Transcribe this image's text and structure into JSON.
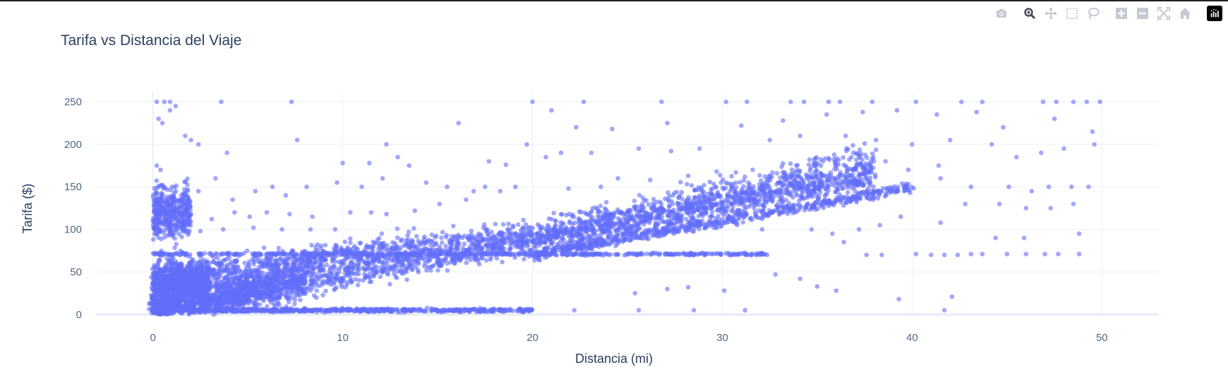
{
  "toolbar": {
    "buttons": [
      {
        "name": "camera-icon",
        "tooltip": "Download plot as a png"
      },
      {
        "name": "zoom-icon",
        "tooltip": "Zoom"
      },
      {
        "name": "pan-icon",
        "tooltip": "Pan"
      },
      {
        "name": "box-select-icon",
        "tooltip": "Box Select"
      },
      {
        "name": "lasso-select-icon",
        "tooltip": "Lasso Select"
      },
      {
        "name": "zoom-in-icon",
        "tooltip": "Zoom in"
      },
      {
        "name": "zoom-out-icon",
        "tooltip": "Zoom out"
      },
      {
        "name": "autoscale-icon",
        "tooltip": "Autoscale"
      },
      {
        "name": "reset-axes-icon",
        "tooltip": "Reset axes"
      }
    ],
    "logo": "plotly-logo-icon"
  },
  "colors": {
    "marker": "#636efa",
    "grid": "#ebf0f8",
    "text": "#2a3f5f",
    "tick": "#506784",
    "zeroline": "#e5ecf6"
  },
  "chart_data": {
    "type": "scatter",
    "title": "Tarifa vs Distancia del Viaje",
    "xlabel": "Distancia (mi)",
    "ylabel": "Tarifa ($)",
    "xlim": [
      -3,
      53
    ],
    "ylim": [
      -3,
      262
    ],
    "xticks": [
      0,
      10,
      20,
      30,
      40,
      50
    ],
    "yticks": [
      0,
      50,
      100,
      150,
      200,
      250
    ],
    "grid": true,
    "legend": "none",
    "marker_opacity": 0.6,
    "series": [
      {
        "points": [
          [
            0.2,
            250
          ],
          [
            0.6,
            250
          ],
          [
            0.9,
            250
          ],
          [
            3.6,
            250
          ],
          [
            7.3,
            250
          ],
          [
            20,
            250
          ],
          [
            22.7,
            250
          ],
          [
            26.8,
            250
          ],
          [
            30.2,
            250
          ],
          [
            31.3,
            250
          ],
          [
            33.6,
            250
          ],
          [
            34.3,
            250
          ],
          [
            35.6,
            250
          ],
          [
            36.2,
            250
          ],
          [
            37.9,
            250
          ],
          [
            40.2,
            250
          ],
          [
            42.6,
            250
          ],
          [
            43.7,
            250
          ],
          [
            46.9,
            250
          ],
          [
            47.6,
            250
          ],
          [
            48.5,
            250
          ],
          [
            49.2,
            250
          ],
          [
            49.9,
            250
          ],
          [
            0.3,
            230
          ],
          [
            0.5,
            225
          ],
          [
            0.9,
            240
          ],
          [
            1.2,
            245
          ],
          [
            16.1,
            225
          ],
          [
            21.0,
            240
          ],
          [
            22.3,
            220
          ],
          [
            24.2,
            218
          ],
          [
            27.1,
            225
          ],
          [
            31.0,
            222
          ],
          [
            33.2,
            228
          ],
          [
            35.5,
            235
          ],
          [
            37.4,
            238
          ],
          [
            39.2,
            240
          ],
          [
            41.3,
            235
          ],
          [
            43.4,
            238
          ],
          [
            44.8,
            220
          ],
          [
            47.5,
            230
          ],
          [
            49.5,
            215
          ],
          [
            0.2,
            175
          ],
          [
            0.4,
            170
          ],
          [
            0.6,
            150
          ],
          [
            1.7,
            210
          ],
          [
            2.0,
            205
          ],
          [
            2.4,
            200
          ],
          [
            3.9,
            190
          ],
          [
            7.6,
            205
          ],
          [
            10.0,
            178
          ],
          [
            11.4,
            178
          ],
          [
            12.3,
            200
          ],
          [
            12.9,
            185
          ],
          [
            13.5,
            175
          ],
          [
            17.7,
            180
          ],
          [
            18.6,
            176
          ],
          [
            19.7,
            200
          ],
          [
            20.7,
            185
          ],
          [
            21.5,
            190
          ],
          [
            23.1,
            190
          ],
          [
            25.6,
            195
          ],
          [
            27.3,
            192
          ],
          [
            28.8,
            195
          ],
          [
            32.5,
            205
          ],
          [
            34.1,
            210
          ],
          [
            36.5,
            210
          ],
          [
            38.1,
            205
          ],
          [
            40.0,
            200
          ],
          [
            42.0,
            205
          ],
          [
            44.2,
            200
          ],
          [
            45.5,
            185
          ],
          [
            46.8,
            190
          ],
          [
            48.0,
            195
          ],
          [
            49.6,
            200
          ],
          [
            0.5,
            140
          ],
          [
            1.0,
            150
          ],
          [
            2.4,
            145
          ],
          [
            3.3,
            160
          ],
          [
            4.2,
            135
          ],
          [
            5.4,
            145
          ],
          [
            6.3,
            150
          ],
          [
            7.0,
            140
          ],
          [
            8.1,
            150
          ],
          [
            9.7,
            155
          ],
          [
            11.0,
            150
          ],
          [
            12.1,
            160
          ],
          [
            14.4,
            155
          ],
          [
            15.5,
            150
          ],
          [
            16.9,
            145
          ],
          [
            17.5,
            150
          ],
          [
            18.3,
            145
          ],
          [
            19.1,
            150
          ],
          [
            21.9,
            148
          ],
          [
            23.6,
            150
          ],
          [
            24.5,
            160
          ],
          [
            26.2,
            158
          ],
          [
            28.2,
            163
          ],
          [
            29.7,
            168
          ],
          [
            31.6,
            170
          ],
          [
            33.9,
            175
          ],
          [
            35.3,
            180
          ],
          [
            36.8,
            185
          ],
          [
            38.6,
            180
          ],
          [
            41.4,
            175
          ],
          [
            43.1,
            150
          ],
          [
            45.1,
            150
          ],
          [
            46.3,
            145
          ],
          [
            47.2,
            150
          ],
          [
            48.4,
            150
          ],
          [
            49.3,
            150
          ],
          [
            0.3,
            120
          ],
          [
            1.1,
            120
          ],
          [
            2.0,
            118
          ],
          [
            3.1,
            112
          ],
          [
            4.3,
            120
          ],
          [
            5.1,
            115
          ],
          [
            6.0,
            120
          ],
          [
            7.2,
            118
          ],
          [
            8.4,
            115
          ],
          [
            10.4,
            120
          ],
          [
            11.5,
            120
          ],
          [
            12.3,
            118
          ],
          [
            13.8,
            122
          ],
          [
            15.1,
            130
          ],
          [
            16.5,
            135
          ],
          [
            27.4,
            140
          ],
          [
            30.5,
            150
          ],
          [
            33.0,
            155
          ],
          [
            35.2,
            160
          ],
          [
            37.5,
            165
          ],
          [
            39.8,
            170
          ],
          [
            41.5,
            160
          ],
          [
            42.8,
            130
          ],
          [
            44.6,
            130
          ],
          [
            46.0,
            125
          ],
          [
            47.3,
            125
          ],
          [
            48.5,
            130
          ],
          [
            0.2,
            95
          ],
          [
            0.4,
            100
          ],
          [
            1.2,
            100
          ],
          [
            2.5,
            98
          ],
          [
            3.7,
            100
          ],
          [
            5.3,
            102
          ],
          [
            6.8,
            100
          ],
          [
            8.3,
            100
          ],
          [
            9.6,
            100
          ],
          [
            26.0,
            95
          ],
          [
            29.4,
            110
          ],
          [
            32.1,
            100
          ],
          [
            34.7,
            100
          ],
          [
            35.8,
            95
          ],
          [
            36.4,
            85
          ],
          [
            37.2,
            100
          ],
          [
            38.3,
            105
          ],
          [
            39.4,
            115
          ],
          [
            41.5,
            108
          ],
          [
            44.4,
            90
          ],
          [
            45.9,
            90
          ],
          [
            48.8,
            95
          ],
          [
            16.6,
            90
          ],
          [
            18.2,
            94
          ],
          [
            19.5,
            98
          ],
          [
            20.8,
            105
          ],
          [
            37.6,
            70
          ],
          [
            38.4,
            70
          ],
          [
            40.2,
            71
          ],
          [
            41.0,
            70
          ],
          [
            41.7,
            70
          ],
          [
            42.4,
            70
          ],
          [
            43.1,
            71
          ],
          [
            43.7,
            71
          ],
          [
            45.0,
            71
          ],
          [
            46.0,
            71
          ],
          [
            47.0,
            71
          ],
          [
            47.7,
            71
          ],
          [
            48.8,
            71
          ],
          [
            25.4,
            25
          ],
          [
            27.1,
            30
          ],
          [
            28.2,
            32
          ],
          [
            30.1,
            28
          ],
          [
            32.8,
            47
          ],
          [
            34.1,
            42
          ],
          [
            35.0,
            33
          ],
          [
            36.0,
            28
          ],
          [
            39.3,
            18
          ],
          [
            42.1,
            21
          ],
          [
            41.7,
            5
          ],
          [
            31.2,
            5
          ],
          [
            28.5,
            5
          ],
          [
            25.6,
            5
          ],
          [
            22.2,
            5
          ],
          [
            2.8,
            60
          ],
          [
            3.6,
            55
          ],
          [
            4.4,
            62
          ],
          [
            5.8,
            58
          ],
          [
            7.5,
            64
          ],
          [
            8.9,
            60
          ],
          [
            10.7,
            70
          ],
          [
            12.5,
            72
          ],
          [
            14.2,
            74
          ],
          [
            15.7,
            78
          ],
          [
            17.8,
            82
          ],
          [
            19.2,
            88
          ]
        ],
        "trends": [
          {
            "x_from": 0.0,
            "x_to": 38.0,
            "y_at_from": 2,
            "y_at_to": 162,
            "spread": 22,
            "density": 1.0
          },
          {
            "x_from": 0.0,
            "x_to": 22.0,
            "y_at_from": 40,
            "y_at_to": 100,
            "spread": 28,
            "density": 0.85
          },
          {
            "x_from": 20.0,
            "x_to": 40.0,
            "y_at_from": 70,
            "y_at_to": 150,
            "spread": 9,
            "density": 0.45
          },
          {
            "x_from": 0.0,
            "x_to": 8.0,
            "y_at_from": 10,
            "y_at_to": 40,
            "spread": 30,
            "density": 0.9
          },
          {
            "x_from": 22.0,
            "x_to": 38.0,
            "y_at_from": 100,
            "y_at_to": 180,
            "spread": 30,
            "density": 0.5
          }
        ],
        "bands": [
          {
            "x_from": 0.0,
            "x_to": 20.0,
            "y": 5,
            "spread": 3,
            "density": 0.9
          },
          {
            "x_from": 0.0,
            "x_to": 32.5,
            "y": 71,
            "spread": 2,
            "density": 0.75
          },
          {
            "x_from": 0.0,
            "x_to": 2.0,
            "y": 120,
            "spread": 45,
            "density": 0.6
          },
          {
            "x_from": 0.0,
            "x_to": 3.0,
            "y": 40,
            "spread": 36,
            "density": 1.0
          }
        ]
      }
    ]
  }
}
